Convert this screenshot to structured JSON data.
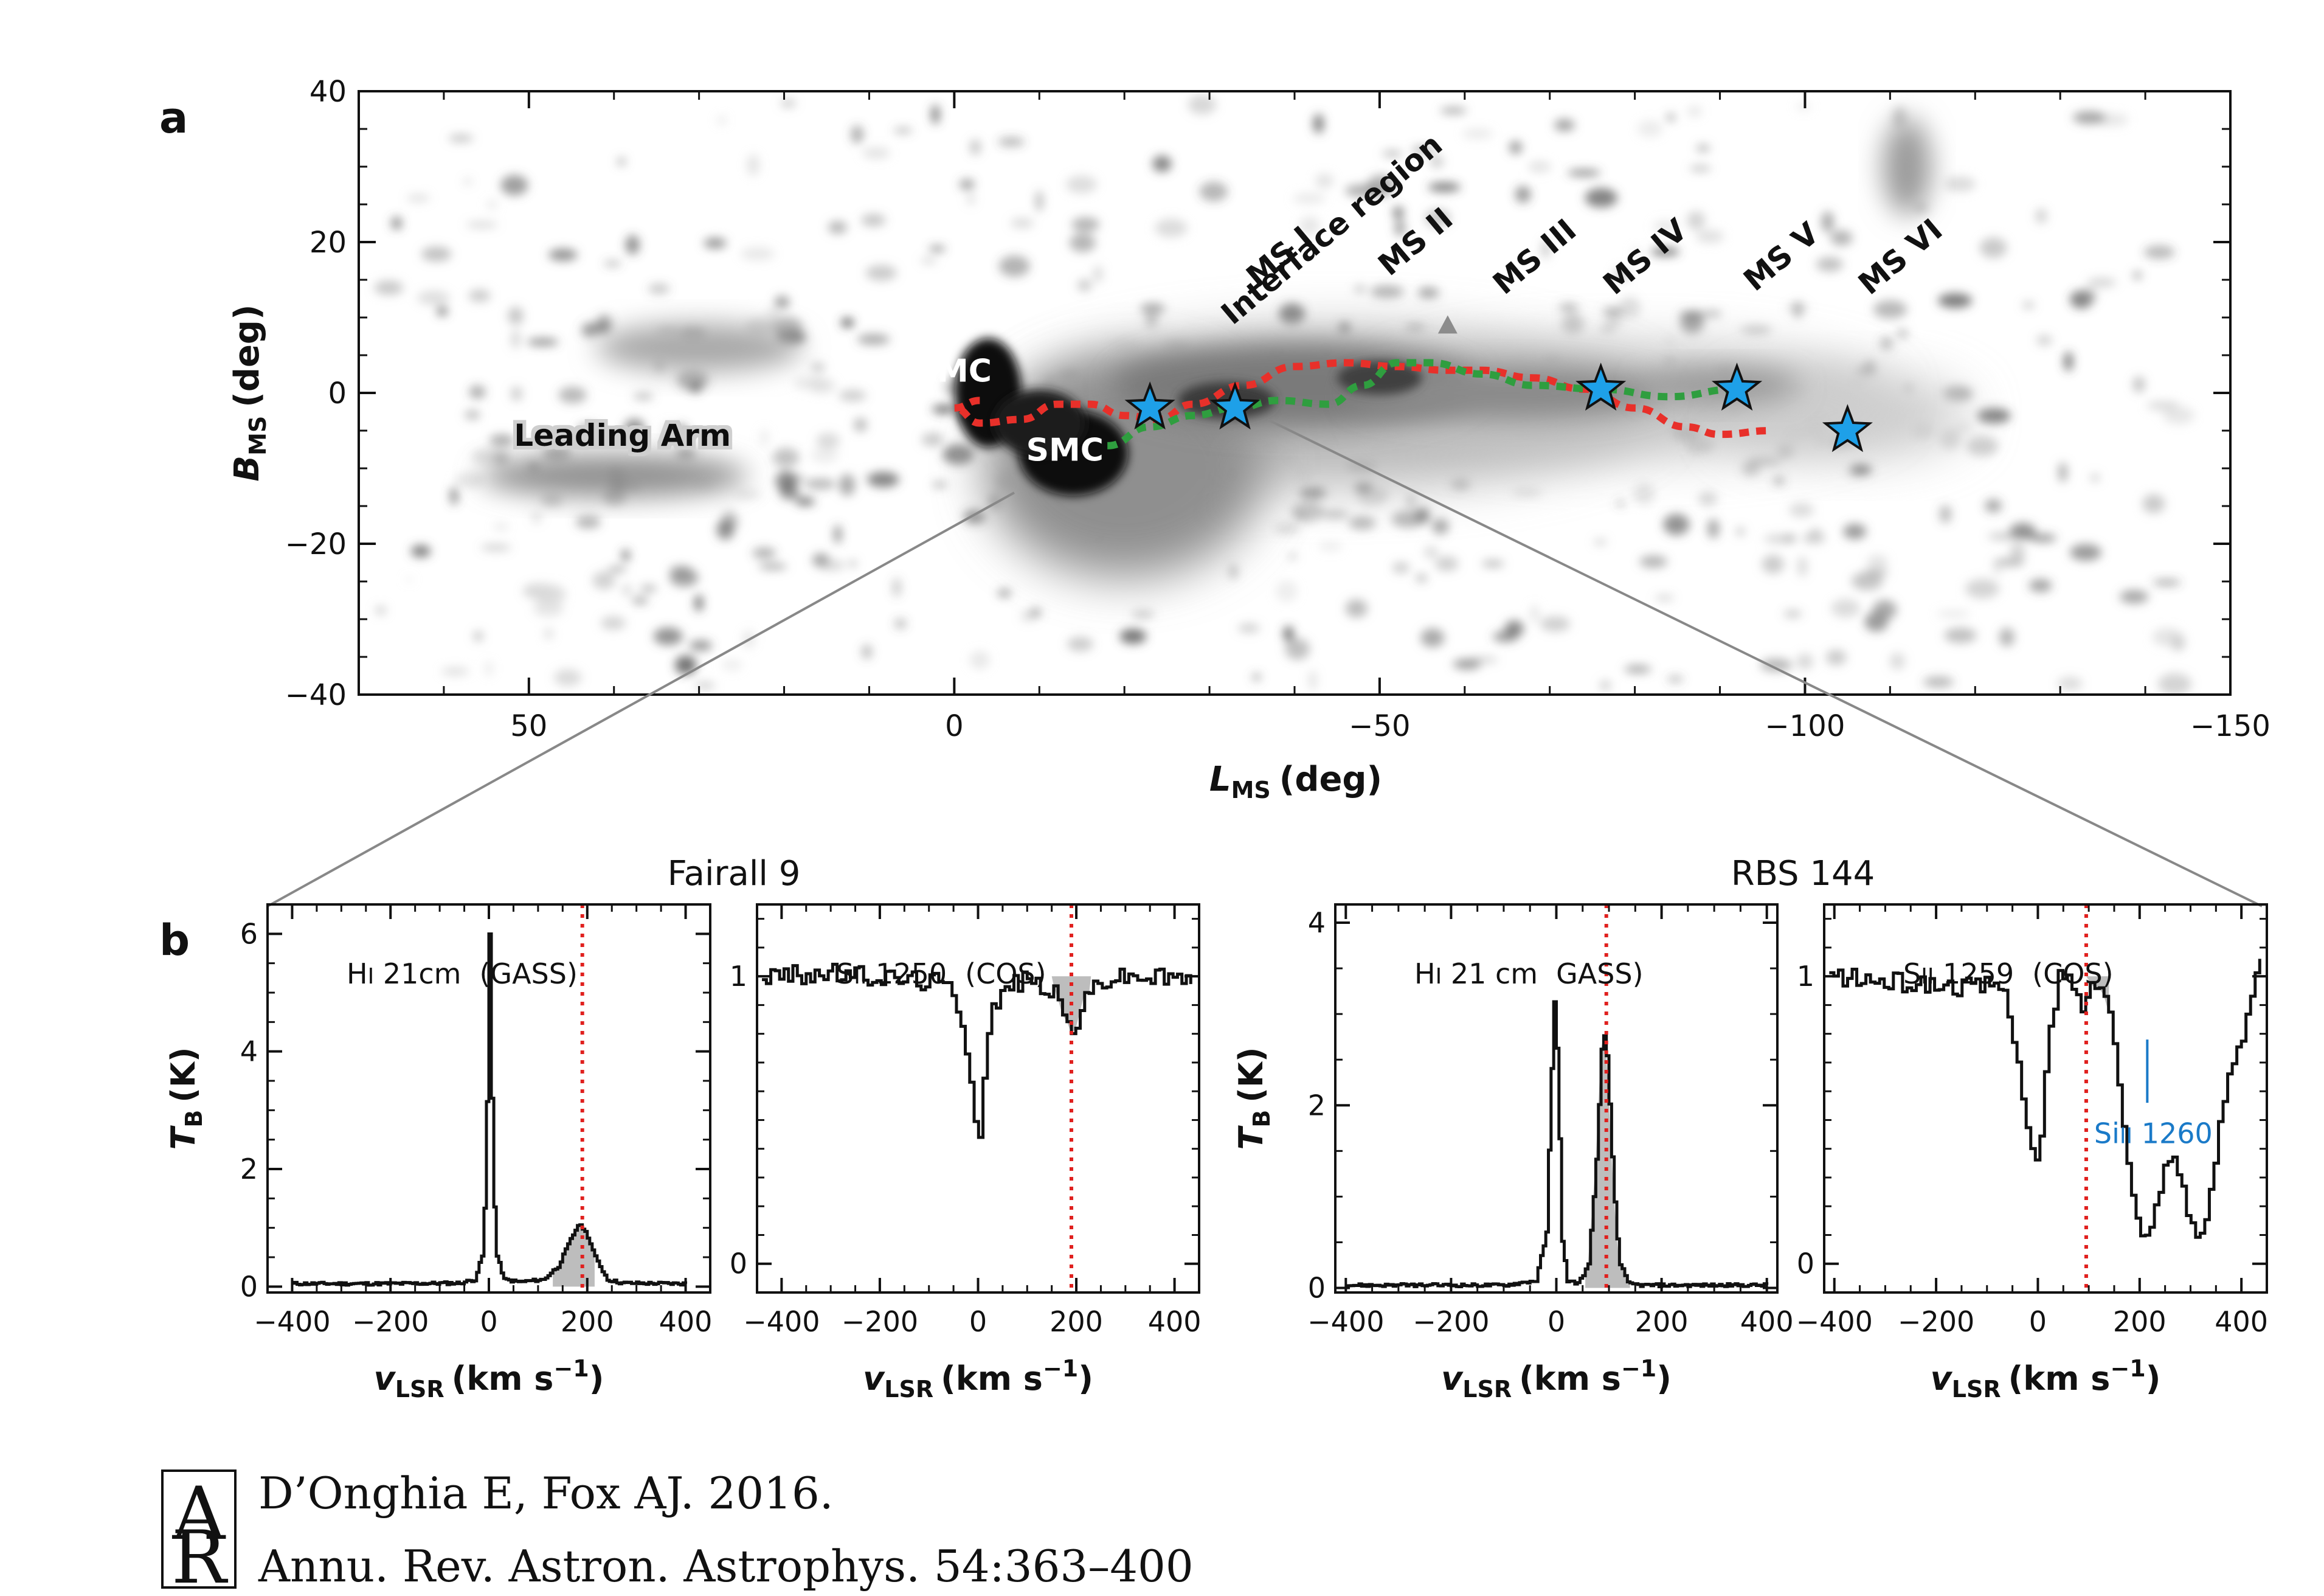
{
  "chart_data": [
    {
      "panel": "a",
      "type": "scatter",
      "xlabel": "L",
      "xlabel_sub": "MS",
      "xlabel_unit": "(deg)",
      "ylabel": "B",
      "ylabel_sub": "MS",
      "ylabel_unit": "(deg)",
      "xlim": [
        70,
        -150
      ],
      "ylim": [
        -40,
        40
      ],
      "xticks": [
        50,
        0,
        -50,
        -100,
        -150
      ],
      "xtick_labels": [
        "50",
        "0",
        "−50",
        "−100",
        "−150"
      ],
      "yticks": [
        40,
        20,
        0,
        -20,
        -40
      ],
      "ytick_labels": [
        "40",
        "20",
        "0",
        "−20",
        "−40"
      ],
      "annotations": [
        {
          "text": "Leading Arm",
          "x": 39,
          "y": -7
        },
        {
          "text": "LMC",
          "x": 0,
          "y": 1.5
        },
        {
          "text": "SMC",
          "x": -13,
          "y": -9
        },
        {
          "text": "Interface region",
          "x": -36,
          "y": 12
        },
        {
          "text": "MS I",
          "x": -39,
          "y": 17
        },
        {
          "text": "MS II",
          "x": -55,
          "y": 19
        },
        {
          "text": "MS III",
          "x": -69,
          "y": 17
        },
        {
          "text": "MS IV",
          "x": -82,
          "y": 17
        },
        {
          "text": "MS V",
          "x": -98,
          "y": 17
        },
        {
          "text": "MS VI",
          "x": -112,
          "y": 17
        }
      ],
      "stars": [
        {
          "x": -23,
          "y": -2
        },
        {
          "x": -33,
          "y": -2
        },
        {
          "x": -76,
          "y": 0.5
        },
        {
          "x": -92,
          "y": 0.5
        },
        {
          "x": -105,
          "y": -5
        }
      ],
      "red_track": {
        "x": [
          -3,
          0,
          -3,
          -8,
          -12,
          -16,
          -20,
          -24,
          -28,
          -34,
          -40,
          -46,
          -52,
          -58,
          -62,
          -68,
          -74,
          -80,
          -86,
          -90,
          -96
        ],
        "y": [
          -1,
          -2,
          -4,
          -3.5,
          -1.5,
          -1.5,
          -3,
          -3.5,
          -1.5,
          1,
          3.5,
          4,
          3.5,
          3,
          3,
          2,
          0.5,
          -2,
          -4.5,
          -5.5,
          -5
        ]
      },
      "green_track": {
        "x": [
          -18,
          -23,
          -28,
          -33,
          -38,
          -44,
          -48,
          -52,
          -56,
          -62,
          -68,
          -76,
          -84,
          -92
        ],
        "y": [
          -7,
          -4.5,
          -3,
          -2,
          -1,
          -1.5,
          1,
          4,
          4,
          2.5,
          1,
          0.5,
          -0.5,
          0.5
        ]
      },
      "grey_triangle": {
        "x": -58,
        "y": 9
      }
    },
    {
      "panel": "b1",
      "group": "Fairall 9",
      "type": "line",
      "label": "HI 21cm",
      "label_pre": "H",
      "label_ion": "I",
      "label_rest": " 21cm",
      "source": "(GASS)",
      "ylabel": "T",
      "ylabel_sub": "B",
      "ylabel_unit": "(K)",
      "xlabel": "v",
      "xlabel_sub": "LSR",
      "xlabel_unit": "(km s",
      "xlabel_exp": "−1",
      "xlabel_close": ")",
      "xlim": [
        -450,
        450
      ],
      "ylim": [
        -0.1,
        6.5
      ],
      "xtick_labels": [
        "−400",
        "−200",
        "0",
        "200",
        "400"
      ],
      "yticks": [
        0,
        2,
        4,
        6
      ],
      "ytick_labels": [
        "0",
        "2",
        "4",
        "6"
      ],
      "marker_velocity": 190,
      "x": [
        -400,
        -200,
        -60,
        -30,
        -12,
        -4,
        0,
        4,
        12,
        30,
        60,
        110,
        140,
        165,
        180,
        190,
        200,
        215,
        240,
        270,
        400
      ],
      "y": [
        0.05,
        0.05,
        0.06,
        0.12,
        0.6,
        3.5,
        6.0,
        3.6,
        0.6,
        0.12,
        0.08,
        0.12,
        0.35,
        0.8,
        1.05,
        1.0,
        0.85,
        0.5,
        0.12,
        0.06,
        0.05
      ],
      "shade": [
        130,
        215
      ]
    },
    {
      "panel": "b2",
      "group": "Fairall 9",
      "type": "line",
      "label": "SII 1250",
      "label_pre": "S",
      "label_ion": "II",
      "label_rest": " 1250",
      "source": "(COS)",
      "xlabel": "v",
      "xlabel_sub": "LSR",
      "xlabel_unit": "(km s",
      "xlabel_exp": "−1",
      "xlabel_close": ")",
      "xlim": [
        -450,
        450
      ],
      "ylim": [
        -0.1,
        1.25
      ],
      "xtick_labels": [
        "−400",
        "−200",
        "0",
        "200",
        "400"
      ],
      "yticks": [
        0,
        1
      ],
      "ytick_labels": [
        "0",
        "1"
      ],
      "marker_velocity": 190,
      "x": [
        -440,
        -300,
        -150,
        -80,
        -50,
        -30,
        -15,
        -5,
        0,
        8,
        25,
        60,
        100,
        150,
        175,
        190,
        205,
        240,
        300,
        440
      ],
      "y": [
        1.0,
        1.01,
        0.99,
        0.98,
        0.94,
        0.82,
        0.6,
        0.47,
        0.45,
        0.62,
        0.88,
        0.97,
        0.99,
        0.95,
        0.86,
        0.8,
        0.88,
        0.98,
        1.0,
        0.99
      ],
      "shade": [
        150,
        230
      ]
    },
    {
      "panel": "b3",
      "group": "RBS 144",
      "type": "line",
      "label": "HI 21 cm",
      "label_pre": "H",
      "label_ion": "I",
      "label_rest": " 21 cm",
      "source": "GASS)",
      "ylabel": "T",
      "ylabel_sub": "B",
      "ylabel_unit": "(K)",
      "xlabel": "v",
      "xlabel_sub": "LSR",
      "xlabel_unit": "(km s",
      "xlabel_exp": "−1",
      "xlabel_close": ")",
      "xlim": [
        -420,
        420
      ],
      "ylim": [
        -0.05,
        4.2
      ],
      "xtick_labels": [
        "−400",
        "−200",
        "0",
        "200",
        "400"
      ],
      "yticks": [
        0,
        2,
        4
      ],
      "ytick_labels": [
        "0",
        "2",
        "4"
      ],
      "marker_velocity": 95,
      "x": [
        -400,
        -100,
        -40,
        -20,
        -10,
        -4,
        2,
        10,
        20,
        40,
        60,
        75,
        85,
        90,
        95,
        100,
        108,
        118,
        135,
        160,
        400
      ],
      "y": [
        0.03,
        0.03,
        0.08,
        0.6,
        2.4,
        3.3,
        2.3,
        0.5,
        0.08,
        0.05,
        0.25,
        1.4,
        2.6,
        2.75,
        2.55,
        2.0,
        1.1,
        0.3,
        0.05,
        0.03,
        0.03
      ],
      "shade": [
        55,
        140
      ]
    },
    {
      "panel": "b4",
      "group": "RBS 144",
      "type": "line",
      "label": "SII 1259",
      "label_pre": "S",
      "label_ion": "II",
      "label_rest": " 1259",
      "source": "(COS)",
      "xlabel": "v",
      "xlabel_sub": "LSR",
      "xlabel_unit": "(km s",
      "xlabel_exp": "−1",
      "xlabel_close": ")",
      "xlim": [
        -420,
        450
      ],
      "ylim": [
        -0.1,
        1.25
      ],
      "xtick_labels": [
        "−400",
        "−200",
        "0",
        "200",
        "400"
      ],
      "yticks": [
        0,
        1
      ],
      "ytick_labels": [
        "0",
        "1"
      ],
      "marker_velocity": 95,
      "x": [
        -410,
        -300,
        -200,
        -110,
        -80,
        -60,
        -40,
        -20,
        -5,
        5,
        20,
        40,
        60,
        80,
        95,
        110,
        130,
        150,
        170,
        190,
        205,
        220,
        240,
        260,
        280,
        300,
        320,
        340,
        360,
        380,
        400,
        420,
        440
      ],
      "y": [
        1.0,
        0.98,
        0.97,
        0.96,
        0.98,
        0.9,
        0.7,
        0.42,
        0.35,
        0.45,
        0.8,
        1.0,
        0.98,
        0.9,
        0.92,
        0.98,
        0.95,
        0.75,
        0.45,
        0.18,
        0.07,
        0.12,
        0.3,
        0.38,
        0.3,
        0.13,
        0.1,
        0.25,
        0.55,
        0.7,
        0.8,
        0.98,
        1.1
      ],
      "shade": [
        95,
        140
      ],
      "line_label": "SiII 1260",
      "line_label_pre": "Si",
      "line_label_ion": "II",
      "line_label_rest": " 1260",
      "line_velocity": 215
    }
  ],
  "panel_labels": {
    "a": "a",
    "b": "b"
  },
  "group_titles": {
    "left": "Fairall 9",
    "right": "RBS 144"
  },
  "citation": {
    "logo": "AR",
    "line1": "D’Onghia E, Fox AJ. 2016.",
    "line2": "Annu. Rev. Astron. Astrophys. 54:363–400"
  },
  "colors": {
    "red_track": "#e8302a",
    "green_track": "#2f9e3f",
    "star": "#1ea0e8",
    "marker": "#e0201e",
    "shade": "#bdbdbd",
    "siII_label": "#1a7ac8"
  }
}
